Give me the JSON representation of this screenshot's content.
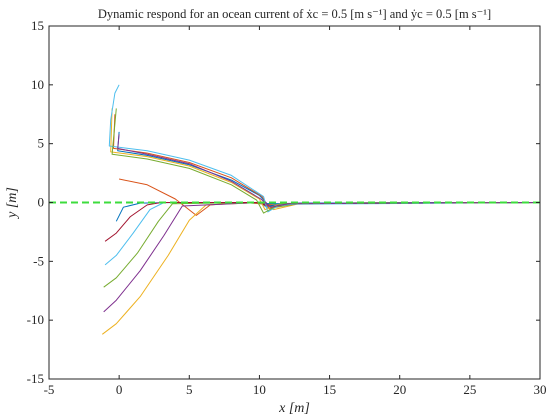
{
  "chart_data": {
    "type": "line",
    "title": "Dynamic respond for an ocean current of ẋc = 0.5 [m s⁻¹] and ẏc = 0.5 [m s⁻¹]",
    "xlabel": "x [m]",
    "ylabel": "y [m]",
    "xlim": [
      -5,
      30
    ],
    "ylim": [
      -15,
      15
    ],
    "xticks": [
      -5,
      0,
      5,
      10,
      15,
      20,
      25,
      30
    ],
    "yticks": [
      -15,
      -10,
      -5,
      0,
      5,
      10,
      15
    ],
    "grid": false,
    "reference_line": {
      "y": 0,
      "color": "#3ddc3d",
      "style": "dashed"
    },
    "series": [
      {
        "color": "#0072bd",
        "points": [
          [
            -0.2,
            -1.6
          ],
          [
            0.3,
            -0.4
          ],
          [
            1.5,
            -0.05
          ],
          [
            4,
            0
          ],
          [
            8,
            0
          ],
          [
            11,
            -0.1
          ],
          [
            13,
            -0.05
          ],
          [
            30,
            0
          ]
        ]
      },
      {
        "color": "#d95319",
        "points": [
          [
            0,
            2
          ],
          [
            2,
            1.5
          ],
          [
            4,
            0.3
          ],
          [
            5.5,
            -1.1
          ],
          [
            6.5,
            -0.2
          ],
          [
            9,
            0
          ],
          [
            11,
            -0.2
          ],
          [
            13.5,
            -0.05
          ],
          [
            30,
            0
          ]
        ]
      },
      {
        "color": "#edb120",
        "points": [
          [
            -1.2,
            -11.2
          ],
          [
            -0.2,
            -10.3
          ],
          [
            1.5,
            -8
          ],
          [
            3.5,
            -4.5
          ],
          [
            5,
            -1.5
          ],
          [
            6.2,
            -0.2
          ],
          [
            10,
            0
          ],
          [
            11,
            -0.6
          ],
          [
            13,
            -0.05
          ],
          [
            30,
            0
          ]
        ]
      },
      {
        "color": "#7e2f8e",
        "points": [
          [
            -1.1,
            -9.3
          ],
          [
            -0.2,
            -8.3
          ],
          [
            1.5,
            -5.8
          ],
          [
            3.2,
            -2.8
          ],
          [
            4.5,
            -0.3
          ],
          [
            10,
            0
          ],
          [
            11,
            -0.4
          ],
          [
            13,
            -0.05
          ],
          [
            30,
            0
          ]
        ]
      },
      {
        "color": "#77ac30",
        "points": [
          [
            -1.1,
            -7.2
          ],
          [
            -0.2,
            -6.4
          ],
          [
            1.3,
            -4.3
          ],
          [
            2.8,
            -1.6
          ],
          [
            3.8,
            -0.1
          ],
          [
            10,
            0
          ],
          [
            10.7,
            -0.5
          ],
          [
            13,
            -0.05
          ],
          [
            30,
            0
          ]
        ]
      },
      {
        "color": "#4dbeee",
        "points": [
          [
            -1,
            -5.3
          ],
          [
            -0.2,
            -4.5
          ],
          [
            1,
            -2.6
          ],
          [
            2.2,
            -0.6
          ],
          [
            3.2,
            0
          ],
          [
            10,
            0
          ],
          [
            10.5,
            -0.4
          ],
          [
            13,
            -0.05
          ],
          [
            30,
            0
          ]
        ]
      },
      {
        "color": "#a2142f",
        "points": [
          [
            -1,
            -3.3
          ],
          [
            -0.2,
            -2.6
          ],
          [
            0.8,
            -1.2
          ],
          [
            2,
            -0.2
          ],
          [
            3,
            0
          ],
          [
            10,
            0
          ],
          [
            10.5,
            -0.3
          ],
          [
            13,
            -0.05
          ],
          [
            30,
            0
          ]
        ]
      },
      {
        "color": "#0072bd",
        "points": [
          [
            0,
            6
          ],
          [
            -0.1,
            4.4
          ],
          [
            2,
            4.0
          ],
          [
            5,
            3.2
          ],
          [
            8,
            1.9
          ],
          [
            10,
            0.6
          ],
          [
            10.7,
            -0.3
          ],
          [
            11.5,
            -0.15
          ],
          [
            13,
            -0.05
          ],
          [
            30,
            0
          ]
        ]
      },
      {
        "color": "#d95319",
        "points": [
          [
            -0.3,
            7.5
          ],
          [
            -0.4,
            4.6
          ],
          [
            2,
            4.2
          ],
          [
            5,
            3.4
          ],
          [
            8,
            2.1
          ],
          [
            10.2,
            0.5
          ],
          [
            10.7,
            -0.5
          ],
          [
            12,
            -0.1
          ],
          [
            30,
            0
          ]
        ]
      },
      {
        "color": "#edb120",
        "points": [
          [
            -0.5,
            8
          ],
          [
            -0.6,
            4.3
          ],
          [
            2,
            3.9
          ],
          [
            5,
            3.1
          ],
          [
            8,
            1.7
          ],
          [
            10,
            0.3
          ],
          [
            10.4,
            -0.6
          ],
          [
            11.5,
            -0.1
          ],
          [
            30,
            0
          ]
        ]
      },
      {
        "color": "#4dbeee",
        "points": [
          [
            0,
            10
          ],
          [
            -0.3,
            9.3
          ],
          [
            -0.6,
            7
          ],
          [
            -0.7,
            4.8
          ],
          [
            2,
            4.4
          ],
          [
            5,
            3.6
          ],
          [
            8,
            2.3
          ],
          [
            10.3,
            0.5
          ],
          [
            10.6,
            -0.8
          ],
          [
            11.5,
            -0.15
          ],
          [
            30,
            0
          ]
        ]
      },
      {
        "color": "#77ac30",
        "points": [
          [
            -0.2,
            8
          ],
          [
            -0.5,
            4.1
          ],
          [
            2,
            3.7
          ],
          [
            5,
            2.9
          ],
          [
            8,
            1.5
          ],
          [
            9.8,
            0.2
          ],
          [
            10.3,
            -0.9
          ],
          [
            11.5,
            -0.1
          ],
          [
            30,
            0
          ]
        ]
      },
      {
        "color": "#7e2f8e",
        "points": [
          [
            0,
            5.8
          ],
          [
            -0.1,
            4.6
          ],
          [
            2,
            4.1
          ],
          [
            5,
            3.3
          ],
          [
            8,
            1.8
          ],
          [
            10.1,
            0.3
          ],
          [
            10.8,
            -0.4
          ],
          [
            12,
            -0.1
          ],
          [
            30,
            0
          ]
        ]
      }
    ]
  }
}
